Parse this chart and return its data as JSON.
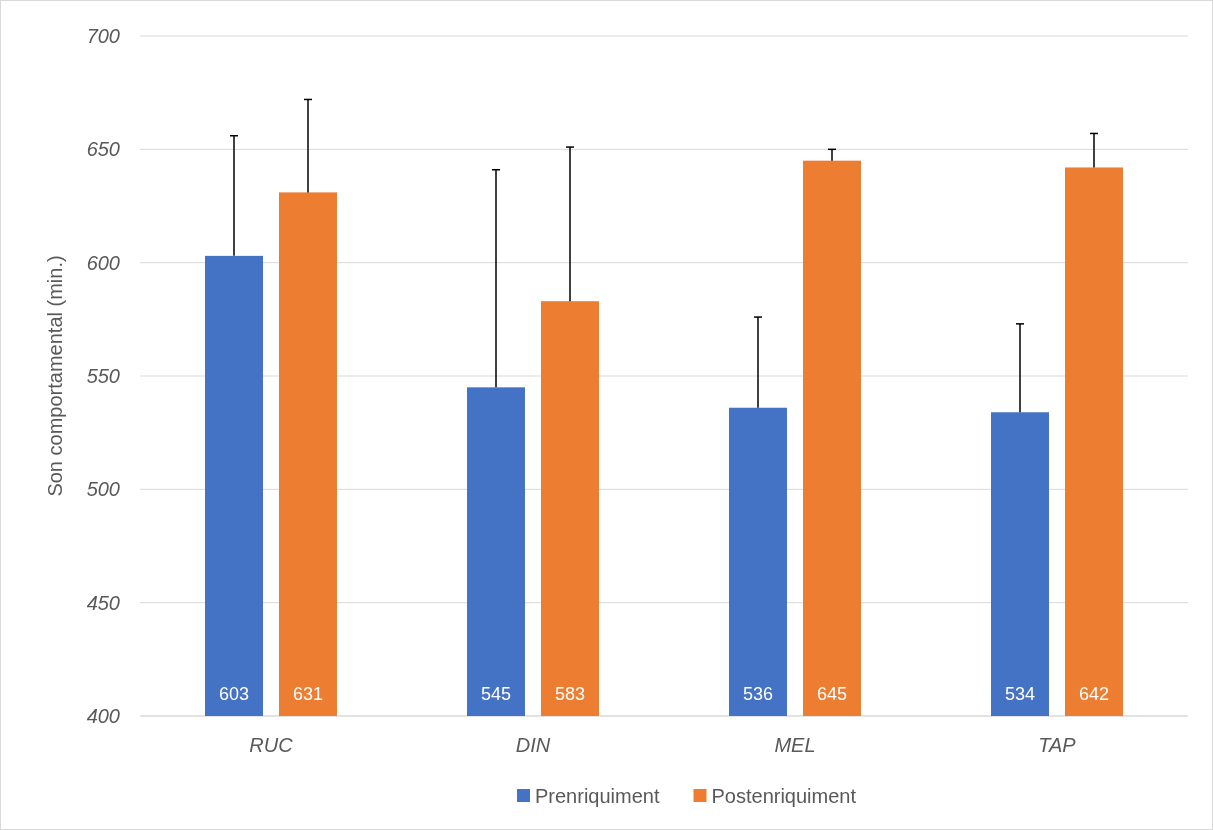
{
  "chart_data": {
    "type": "bar",
    "ylabel": "Son comportamental (min.)",
    "categories": [
      "RUC",
      "DIN",
      "MEL",
      "TAP"
    ],
    "series": [
      {
        "name": "Prenriquiment",
        "color": "#4472c4",
        "values": [
          603,
          545,
          536,
          534
        ],
        "errors": [
          [
            603,
            656
          ],
          [
            545,
            641
          ],
          [
            536,
            576
          ],
          [
            534,
            573
          ]
        ]
      },
      {
        "name": "Postenriquiment",
        "color": "#ed7d31",
        "values": [
          631,
          583,
          645,
          642
        ],
        "errors": [
          [
            631,
            672
          ],
          [
            583,
            651
          ],
          [
            645,
            650
          ],
          [
            642,
            657
          ]
        ]
      }
    ],
    "ylim": [
      400,
      700
    ],
    "yticks": [
      400,
      450,
      500,
      550,
      600,
      650,
      700
    ],
    "grid": "y",
    "legend": "bottom",
    "data_labels": true
  }
}
